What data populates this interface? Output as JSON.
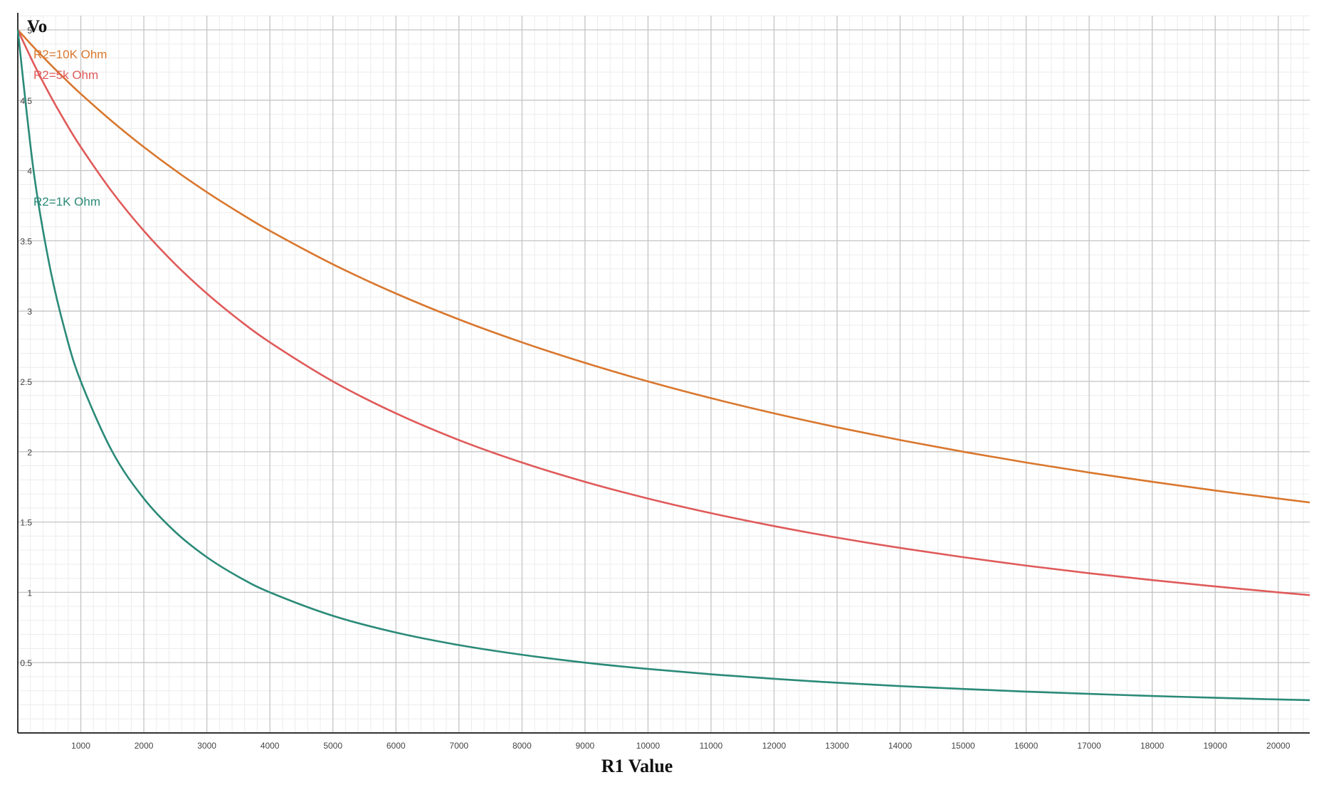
{
  "chart_data": {
    "type": "line",
    "title": "",
    "xlabel": "R1 Value",
    "ylabel": "Vo",
    "xlim": [
      0,
      20500
    ],
    "ylim": [
      0,
      5
    ],
    "grid": true,
    "x_ticks": [
      1000,
      2000,
      3000,
      4000,
      5000,
      6000,
      7000,
      8000,
      9000,
      10000,
      11000,
      12000,
      13000,
      14000,
      15000,
      16000,
      17000,
      18000,
      19000,
      20000
    ],
    "x_tick_labels": [
      "1000",
      "2000",
      "3000",
      "4000",
      "5000",
      "6000",
      "7000",
      "8000",
      "9000",
      "10000",
      "11000",
      "12000",
      "13000",
      "14000",
      "15000",
      "16000",
      "17000",
      "18000",
      "19000",
      "20000"
    ],
    "y_ticks": [
      0.5,
      1,
      1.5,
      2,
      2.5,
      3,
      3.5,
      4,
      4.5,
      5
    ],
    "y_tick_labels": [
      "0.5",
      "1",
      "1.5",
      "2",
      "2.5",
      "3",
      "3.5",
      "4",
      "4.5",
      "5"
    ],
    "x": [
      0,
      250,
      500,
      750,
      1000,
      1500,
      2000,
      2500,
      3000,
      3500,
      4000,
      5000,
      6000,
      7000,
      8000,
      9000,
      10000,
      11000,
      12000,
      13000,
      14000,
      15000,
      16000,
      17000,
      18000,
      19000,
      20000,
      20500
    ],
    "series": [
      {
        "name": "R2=10K Ohm",
        "color": "#d9772e",
        "values": [
          5.0,
          4.878,
          4.762,
          4.651,
          4.545,
          4.348,
          4.167,
          4.0,
          3.846,
          3.704,
          3.571,
          3.333,
          3.125,
          2.941,
          2.778,
          2.632,
          2.5,
          2.381,
          2.273,
          2.174,
          2.083,
          2.0,
          1.923,
          1.852,
          1.786,
          1.724,
          1.667,
          1.639
        ]
      },
      {
        "name": "R2=5k Ohm",
        "color": "#e05a5a",
        "values": [
          5.0,
          4.762,
          4.545,
          4.348,
          4.167,
          3.846,
          3.571,
          3.333,
          3.125,
          2.941,
          2.778,
          2.5,
          2.273,
          2.083,
          1.923,
          1.786,
          1.667,
          1.563,
          1.471,
          1.389,
          1.316,
          1.25,
          1.19,
          1.136,
          1.087,
          1.042,
          1.0,
          0.98
        ]
      },
      {
        "name": "R2=1K Ohm",
        "color": "#2a8a78",
        "values": [
          5.0,
          4.0,
          3.333,
          2.857,
          2.5,
          2.0,
          1.667,
          1.429,
          1.25,
          1.111,
          1.0,
          0.833,
          0.714,
          0.625,
          0.556,
          0.5,
          0.455,
          0.417,
          0.385,
          0.357,
          0.333,
          0.313,
          0.294,
          0.278,
          0.263,
          0.25,
          0.238,
          0.233
        ]
      }
    ],
    "series_labels": [
      {
        "text": "R2=10K Ohm",
        "color": "#d9772e"
      },
      {
        "text": "R2=5k Ohm",
        "color": "#e05a5a"
      },
      {
        "text": "R2=1K Ohm",
        "color": "#2a8a78"
      }
    ]
  }
}
